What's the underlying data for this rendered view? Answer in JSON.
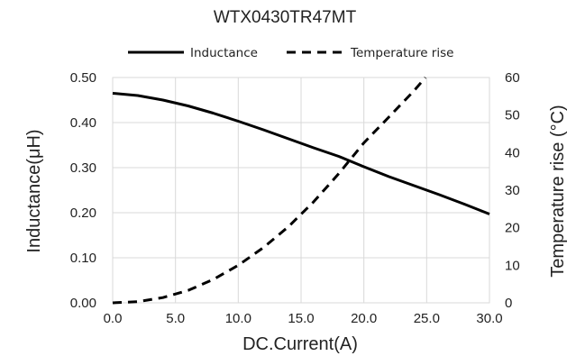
{
  "chart_data": {
    "type": "line",
    "title": "WTX0430TR47MT",
    "xlabel": "DC.Current(A)",
    "ylabel": "Inductance(μH)",
    "y2label": "Temperature rise (°C)",
    "xlim": [
      0,
      30
    ],
    "ylim": [
      0,
      0.5
    ],
    "y2lim": [
      0,
      60
    ],
    "x_ticks": [
      "0.0",
      "5.0",
      "10.0",
      "15.0",
      "20.0",
      "25.0",
      "30.0"
    ],
    "y_ticks": [
      "0.00",
      "0.10",
      "0.20",
      "0.30",
      "0.40",
      "0.50"
    ],
    "y2_ticks": [
      "0",
      "10",
      "20",
      "30",
      "40",
      "50",
      "60"
    ],
    "grid": true,
    "legend_position": "top-center",
    "series": [
      {
        "name": "Inductance",
        "axis": "left",
        "style": "solid",
        "color": "#000000",
        "x": [
          0,
          2,
          4,
          6,
          8,
          10,
          12,
          14,
          16,
          18,
          20,
          22,
          24,
          26,
          28,
          30
        ],
        "y": [
          0.465,
          0.46,
          0.45,
          0.437,
          0.421,
          0.403,
          0.384,
          0.364,
          0.344,
          0.325,
          0.302,
          0.28,
          0.26,
          0.24,
          0.219,
          0.197
        ]
      },
      {
        "name": "Temperature rise",
        "axis": "right",
        "style": "dashed",
        "color": "#000000",
        "x": [
          0,
          2,
          4,
          6,
          8,
          10,
          12,
          14,
          16,
          18,
          20,
          22,
          24,
          24.9
        ],
        "y": [
          0,
          0.3,
          1.4,
          3.3,
          6.2,
          10.0,
          14.7,
          20.3,
          26.9,
          34.4,
          42.6,
          49.5,
          56.5,
          60.0
        ]
      }
    ]
  }
}
